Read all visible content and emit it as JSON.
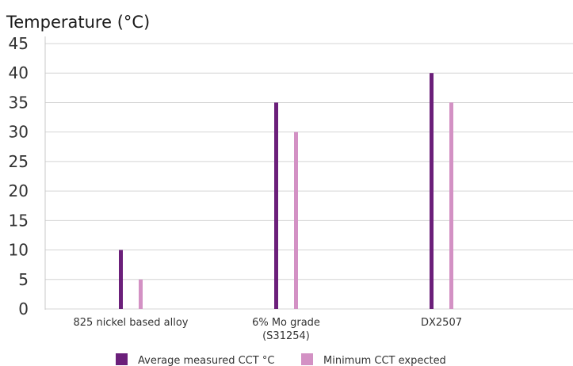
{
  "chart_data": {
    "type": "bar",
    "ylabel": "Temperature (°C)",
    "ylim": [
      0,
      45
    ],
    "yticks": [
      0,
      5,
      10,
      15,
      20,
      25,
      30,
      35,
      40,
      45
    ],
    "grid": true,
    "legend_position": "bottom",
    "categories": [
      {
        "lines": [
          "825 nickel based alloy"
        ]
      },
      {
        "lines": [
          "6% Mo grade",
          "(S31254)"
        ]
      },
      {
        "lines": [
          "DX2507"
        ]
      }
    ],
    "series": [
      {
        "name": "Average measured CCT °C",
        "color": "#6b1f7a",
        "values": [
          10,
          35,
          40
        ]
      },
      {
        "name": "Minimum CCT expected",
        "color": "#d391c4",
        "values": [
          5,
          30,
          35
        ]
      }
    ]
  }
}
